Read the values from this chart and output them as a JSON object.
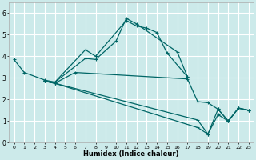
{
  "xlabel": "Humidex (Indice chaleur)",
  "xlim": [
    -0.5,
    23.5
  ],
  "ylim": [
    0,
    6.5
  ],
  "xticks": [
    0,
    1,
    2,
    3,
    4,
    5,
    6,
    7,
    8,
    9,
    10,
    11,
    12,
    13,
    14,
    15,
    16,
    17,
    18,
    19,
    20,
    21,
    22,
    23
  ],
  "yticks": [
    0,
    1,
    2,
    3,
    4,
    5,
    6
  ],
  "bg_color": "#cceaea",
  "grid_color": "#ffffff",
  "line_color": "#006666",
  "series": [
    {
      "x": [
        0,
        1,
        3,
        4,
        7,
        8,
        10,
        11,
        12,
        16,
        17
      ],
      "y": [
        3.85,
        3.25,
        2.9,
        2.8,
        3.9,
        3.85,
        4.7,
        5.75,
        5.5,
        4.2,
        3.05
      ]
    },
    {
      "x": [
        3,
        4,
        7,
        8,
        11,
        12,
        13,
        14,
        15,
        17
      ],
      "y": [
        2.85,
        2.8,
        4.3,
        4.0,
        5.65,
        5.4,
        5.3,
        5.1,
        4.15,
        3.05
      ]
    },
    {
      "x": [
        3,
        4,
        6,
        17,
        18,
        19,
        20,
        21,
        22,
        23
      ],
      "y": [
        2.85,
        2.75,
        3.25,
        2.95,
        1.9,
        1.85,
        1.55,
        1.0,
        1.6,
        1.5
      ]
    },
    {
      "x": [
        3,
        4,
        18,
        19,
        20,
        21,
        22,
        23
      ],
      "y": [
        2.85,
        2.75,
        1.05,
        0.4,
        1.3,
        1.0,
        1.6,
        1.5
      ]
    },
    {
      "x": [
        3,
        4,
        18,
        19,
        20,
        21,
        22,
        23
      ],
      "y": [
        2.85,
        2.75,
        0.7,
        0.4,
        1.55,
        1.0,
        1.6,
        1.5
      ]
    }
  ]
}
